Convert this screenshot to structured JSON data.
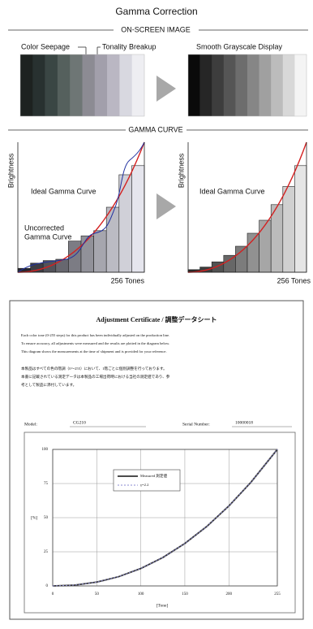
{
  "header": {
    "title": "Gamma Correction"
  },
  "onscreen": {
    "section_label": "ON-SCREEN IMAGE",
    "labels": [
      "Color Seepage",
      "Tonality Breakup",
      "Smooth Grayscale Display"
    ]
  },
  "gamma_curve": {
    "section_label": "GAMMA CURVE",
    "left": {
      "y_label": "Brightness",
      "ideal_label": "Ideal Gamma Curve",
      "uncorrected_label": [
        "Uncorrected",
        "Gamma Curve"
      ],
      "x_label": "256 Tones"
    },
    "right": {
      "y_label": "Brightness",
      "ideal_label": "Ideal Gamma Curve",
      "x_label": "256 Tones"
    }
  },
  "certificate": {
    "title": "Adjustment Certificate / 調整データシート",
    "paragraph_en": [
      "Each color tone (0-255 steps) for this product has been individually adjusted on the production line.",
      "To ensure accuracy, all adjustments were measured and the results are plotted in the diagram below.",
      "This diagram shows the measurements at the time of shipment and is provided for your reference."
    ],
    "paragraph_ja": [
      "本製品はすべての色の階調（0～255）において、1階ごとに個別調整を行っております。",
      "本書に記載されている測定データは本製品の工場出荷時における当社の測定値であり、参",
      "考として製品に添付しています。"
    ],
    "model_label": "Model:",
    "model": "CG210",
    "serial_label": "Serial Number:",
    "serial": "10000018",
    "chart": {
      "type": "line",
      "x_label": "[Tone]",
      "y_label": "[%]",
      "x": [
        0,
        25,
        50,
        75,
        100,
        125,
        150,
        175,
        200,
        225,
        255
      ],
      "series": [
        {
          "name": "Measured 測定値",
          "color": "#333333",
          "values": [
            0,
            0.6,
            2.8,
            6.8,
            12.8,
            20.8,
            31.1,
            43.6,
            58.6,
            75.9,
            100
          ]
        },
        {
          "name": "γ=2.2",
          "color": "#8a8ad0",
          "values": [
            0,
            0.6,
            2.8,
            6.8,
            12.8,
            20.8,
            31.1,
            43.6,
            58.6,
            75.9,
            100
          ]
        }
      ],
      "xlim": [
        0,
        255
      ],
      "ylim": [
        0,
        100
      ],
      "xticks": [
        0,
        50,
        100,
        150,
        200,
        255
      ],
      "yticks": [
        0,
        25,
        50,
        75,
        100
      ],
      "grid": true
    }
  }
}
